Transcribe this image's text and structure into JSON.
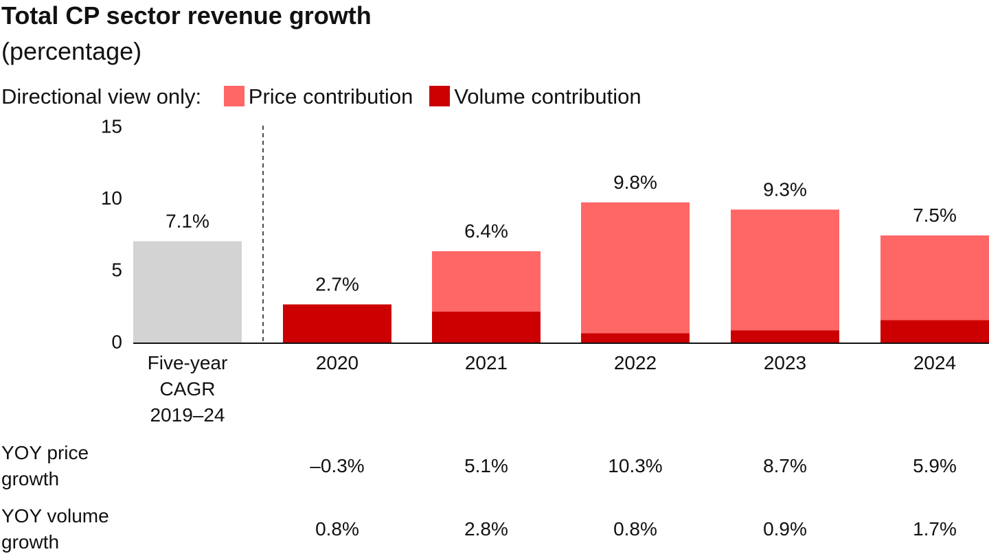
{
  "chart_data": {
    "type": "stacked-bar",
    "title": "Total CP sector revenue growth",
    "subtitle": "(percentage)",
    "legend_title": "Directional view only:",
    "categories": [
      "Five-year CAGR 2019–24",
      "2020",
      "2021",
      "2022",
      "2023",
      "2024"
    ],
    "series": [
      {
        "name": "Price contribution",
        "color": "#ff6666",
        "values": [
          null,
          null,
          4.2,
          9.1,
          8.4,
          5.9
        ]
      },
      {
        "name": "Volume contribution",
        "color": "#cc0000",
        "values": [
          null,
          2.7,
          2.2,
          0.7,
          0.9,
          1.6
        ]
      }
    ],
    "totals": {
      "values": [
        7.1,
        2.7,
        6.4,
        9.8,
        9.3,
        7.5
      ],
      "value_labels": [
        "7.1%",
        "2.7%",
        "6.4%",
        "9.8%",
        "9.3%",
        "7.5%"
      ]
    },
    "cagr_color": "#d3d3d3",
    "ylim": [
      0,
      15
    ],
    "yticks": [
      0,
      5,
      10,
      15
    ],
    "table": {
      "rows": [
        {
          "label": "YOY price growth",
          "values": [
            null,
            "–0.3%",
            "5.1%",
            "10.3%",
            "8.7%",
            "5.9%"
          ]
        },
        {
          "label": "YOY volume growth",
          "values": [
            null,
            "0.8%",
            "2.8%",
            "0.8%",
            "0.9%",
            "1.7%"
          ]
        }
      ]
    }
  }
}
